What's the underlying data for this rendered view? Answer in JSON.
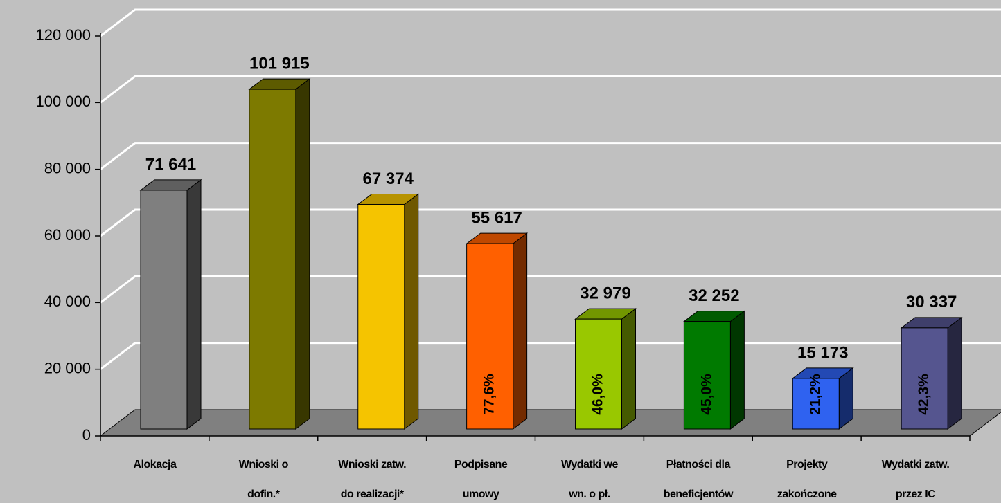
{
  "chart_data": {
    "type": "bar3d",
    "categories": [
      [
        "Alokacja"
      ],
      [
        "Wnioski o",
        "dofin.*"
      ],
      [
        "Wnioski zatw.",
        "do realizacji*"
      ],
      [
        "Podpisane",
        "umowy"
      ],
      [
        "Wydatki we",
        "wn. o pł."
      ],
      [
        "Płatności dla",
        "beneficjentów"
      ],
      [
        "Projekty",
        "zakończone"
      ],
      [
        "Wydatki zatw.",
        "przez IC"
      ]
    ],
    "values": [
      71641,
      101915,
      67374,
      55617,
      32979,
      32252,
      15173,
      30337
    ],
    "value_labels": [
      "71 641",
      "101 915",
      "67 374",
      "55 617",
      "32 979",
      "32 252",
      "15 173",
      "30 337"
    ],
    "percent_labels": [
      null,
      null,
      null,
      "77,6%",
      "46,0%",
      "45,0%",
      "21,2%",
      "42,3%"
    ],
    "colors": [
      "#7f7f7f",
      "#7d7a00",
      "#f5c400",
      "#ff6000",
      "#99c800",
      "#007a00",
      "#2f62f0",
      "#55558f"
    ],
    "ylim": [
      0,
      120000
    ],
    "yticks": [
      0,
      {
        "value": 20000,
        "label": "20 000"
      },
      {
        "value": 40000,
        "label": "40 000"
      },
      {
        "value": 60000,
        "label": "60 000"
      },
      {
        "value": 80000,
        "label": "80 000"
      },
      {
        "value": 100000,
        "label": "100 000"
      },
      {
        "value": 120000,
        "label": "120 000"
      }
    ],
    "grid": true
  }
}
